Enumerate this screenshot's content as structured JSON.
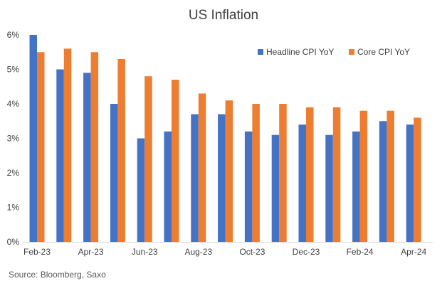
{
  "chart_data": {
    "type": "bar",
    "title": "US Inflation",
    "xlabel": "",
    "ylabel": "",
    "ylim": [
      0,
      6
    ],
    "yticks": [
      "0%",
      "1%",
      "2%",
      "3%",
      "4%",
      "5%",
      "6%"
    ],
    "categories": [
      "Feb-23",
      "Mar-23",
      "Apr-23",
      "May-23",
      "Jun-23",
      "Jul-23",
      "Aug-23",
      "Sep-23",
      "Oct-23",
      "Nov-23",
      "Dec-23",
      "Jan-24",
      "Feb-24",
      "Mar-24",
      "Apr-24"
    ],
    "shown_xticks": [
      "Feb-23",
      "Apr-23",
      "Jun-23",
      "Aug-23",
      "Oct-23",
      "Dec-23",
      "Feb-24",
      "Apr-24"
    ],
    "series": [
      {
        "name": "Headline CPI YoY",
        "color": "#4472c4",
        "values": [
          6.0,
          5.0,
          4.9,
          4.0,
          3.0,
          3.2,
          3.7,
          3.7,
          3.2,
          3.1,
          3.4,
          3.1,
          3.2,
          3.5,
          3.4
        ]
      },
      {
        "name": "Core CPI YoY",
        "color": "#ed7d31",
        "values": [
          5.5,
          5.6,
          5.5,
          5.3,
          4.8,
          4.7,
          4.3,
          4.1,
          4.0,
          4.0,
          3.9,
          3.9,
          3.8,
          3.8,
          3.6
        ]
      }
    ],
    "legend": "top-right",
    "grid": false,
    "source": "Source: Bloomberg, Saxo"
  }
}
